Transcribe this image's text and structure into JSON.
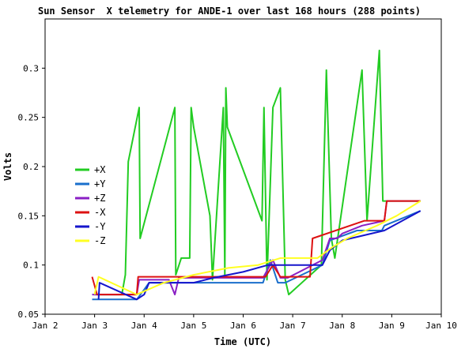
{
  "chart_data": {
    "type": "line",
    "title": "Sun Sensor  X telemetry for ANDE-1 over last 168 hours (288 points)",
    "xlabel": "Time (UTC)",
    "ylabel": "Volts",
    "xlim": [
      2,
      10
    ],
    "ylim": [
      0.05,
      0.35
    ],
    "x_ticks": [
      {
        "value": 2,
        "label": "Jan 2"
      },
      {
        "value": 3,
        "label": "Jan 3"
      },
      {
        "value": 4,
        "label": "Jan 4"
      },
      {
        "value": 5,
        "label": "Jan 5"
      },
      {
        "value": 6,
        "label": "Jan 6"
      },
      {
        "value": 7,
        "label": "Jan 7"
      },
      {
        "value": 8,
        "label": "Jan 8"
      },
      {
        "value": 9,
        "label": "Jan 9"
      },
      {
        "value": 10,
        "label": "Jan 10"
      }
    ],
    "y_ticks": [
      {
        "value": 0.05,
        "label": "0.05"
      },
      {
        "value": 0.1,
        "label": "0.1"
      },
      {
        "value": 0.15,
        "label": "0.15"
      },
      {
        "value": 0.2,
        "label": "0.2"
      },
      {
        "value": 0.25,
        "label": "0.25"
      },
      {
        "value": 0.3,
        "label": "0.3"
      }
    ],
    "grid": false,
    "legend_position": "left",
    "series": [
      {
        "name": "+X",
        "color": "#22cc22",
        "points": [
          [
            3.0,
            0.07
          ],
          [
            3.55,
            0.07
          ],
          [
            3.62,
            0.09
          ],
          [
            3.68,
            0.205
          ],
          [
            3.9,
            0.26
          ],
          [
            3.92,
            0.127
          ],
          [
            4.62,
            0.26
          ],
          [
            4.64,
            0.09
          ],
          [
            4.75,
            0.107
          ],
          [
            4.92,
            0.107
          ],
          [
            4.95,
            0.26
          ],
          [
            5.0,
            0.24
          ],
          [
            5.33,
            0.15
          ],
          [
            5.38,
            0.085
          ],
          [
            5.6,
            0.26
          ],
          [
            5.63,
            0.09
          ],
          [
            5.65,
            0.28
          ],
          [
            5.68,
            0.24
          ],
          [
            6.38,
            0.145
          ],
          [
            6.42,
            0.26
          ],
          [
            6.48,
            0.085
          ],
          [
            6.6,
            0.26
          ],
          [
            6.75,
            0.28
          ],
          [
            6.85,
            0.085
          ],
          [
            6.92,
            0.07
          ],
          [
            7.58,
            0.1
          ],
          [
            7.68,
            0.298
          ],
          [
            7.78,
            0.127
          ],
          [
            7.85,
            0.107
          ],
          [
            8.4,
            0.298
          ],
          [
            8.5,
            0.145
          ],
          [
            8.75,
            0.318
          ],
          [
            8.82,
            0.165
          ],
          [
            9.58,
            0.165
          ]
        ]
      },
      {
        "name": "+Y",
        "color": "#1a6fcc",
        "points": [
          [
            2.95,
            0.065
          ],
          [
            3.85,
            0.065
          ],
          [
            4.0,
            0.075
          ],
          [
            4.1,
            0.082
          ],
          [
            6.4,
            0.082
          ],
          [
            6.55,
            0.105
          ],
          [
            6.7,
            0.082
          ],
          [
            6.85,
            0.082
          ],
          [
            7.6,
            0.1
          ],
          [
            7.75,
            0.125
          ],
          [
            8.3,
            0.135
          ],
          [
            8.8,
            0.135
          ],
          [
            8.85,
            0.14
          ],
          [
            9.58,
            0.155
          ]
        ]
      },
      {
        "name": "+Z",
        "color": "#8a1fc4",
        "points": [
          [
            2.95,
            0.07
          ],
          [
            3.08,
            0.07
          ],
          [
            3.85,
            0.07
          ],
          [
            3.9,
            0.085
          ],
          [
            4.5,
            0.085
          ],
          [
            4.62,
            0.07
          ],
          [
            4.7,
            0.087
          ],
          [
            6.4,
            0.087
          ],
          [
            6.6,
            0.105
          ],
          [
            6.75,
            0.087
          ],
          [
            6.9,
            0.087
          ],
          [
            7.6,
            0.105
          ],
          [
            7.75,
            0.127
          ],
          [
            7.9,
            0.127
          ],
          [
            8.0,
            0.132
          ],
          [
            8.4,
            0.14
          ],
          [
            8.85,
            0.145
          ],
          [
            8.9,
            0.165
          ],
          [
            9.58,
            0.165
          ]
        ]
      },
      {
        "name": "-X",
        "color": "#dd1111",
        "points": [
          [
            2.95,
            0.088
          ],
          [
            3.05,
            0.07
          ],
          [
            3.85,
            0.07
          ],
          [
            3.88,
            0.088
          ],
          [
            4.6,
            0.088
          ],
          [
            4.65,
            0.088
          ],
          [
            6.45,
            0.088
          ],
          [
            6.6,
            0.1
          ],
          [
            6.75,
            0.088
          ],
          [
            7.35,
            0.088
          ],
          [
            7.4,
            0.127
          ],
          [
            8.45,
            0.145
          ],
          [
            8.85,
            0.145
          ],
          [
            8.9,
            0.165
          ],
          [
            9.58,
            0.165
          ]
        ]
      },
      {
        "name": "-Y",
        "color": "#1515cc",
        "points": [
          [
            3.08,
            0.065
          ],
          [
            3.1,
            0.082
          ],
          [
            3.85,
            0.065
          ],
          [
            4.0,
            0.07
          ],
          [
            4.1,
            0.082
          ],
          [
            5.0,
            0.082
          ],
          [
            5.4,
            0.087
          ],
          [
            6.0,
            0.093
          ],
          [
            6.5,
            0.1
          ],
          [
            7.6,
            0.1
          ],
          [
            7.75,
            0.115
          ],
          [
            8.0,
            0.125
          ],
          [
            8.85,
            0.135
          ],
          [
            9.58,
            0.155
          ]
        ]
      },
      {
        "name": "-Z",
        "color": "#ffff22",
        "points": [
          [
            3.0,
            0.07
          ],
          [
            3.08,
            0.088
          ],
          [
            3.85,
            0.07
          ],
          [
            4.4,
            0.082
          ],
          [
            5.0,
            0.09
          ],
          [
            5.7,
            0.097
          ],
          [
            6.3,
            0.1
          ],
          [
            6.75,
            0.107
          ],
          [
            7.5,
            0.107
          ],
          [
            7.8,
            0.118
          ],
          [
            8.1,
            0.127
          ],
          [
            8.7,
            0.14
          ],
          [
            9.1,
            0.15
          ],
          [
            9.58,
            0.165
          ]
        ]
      }
    ]
  }
}
